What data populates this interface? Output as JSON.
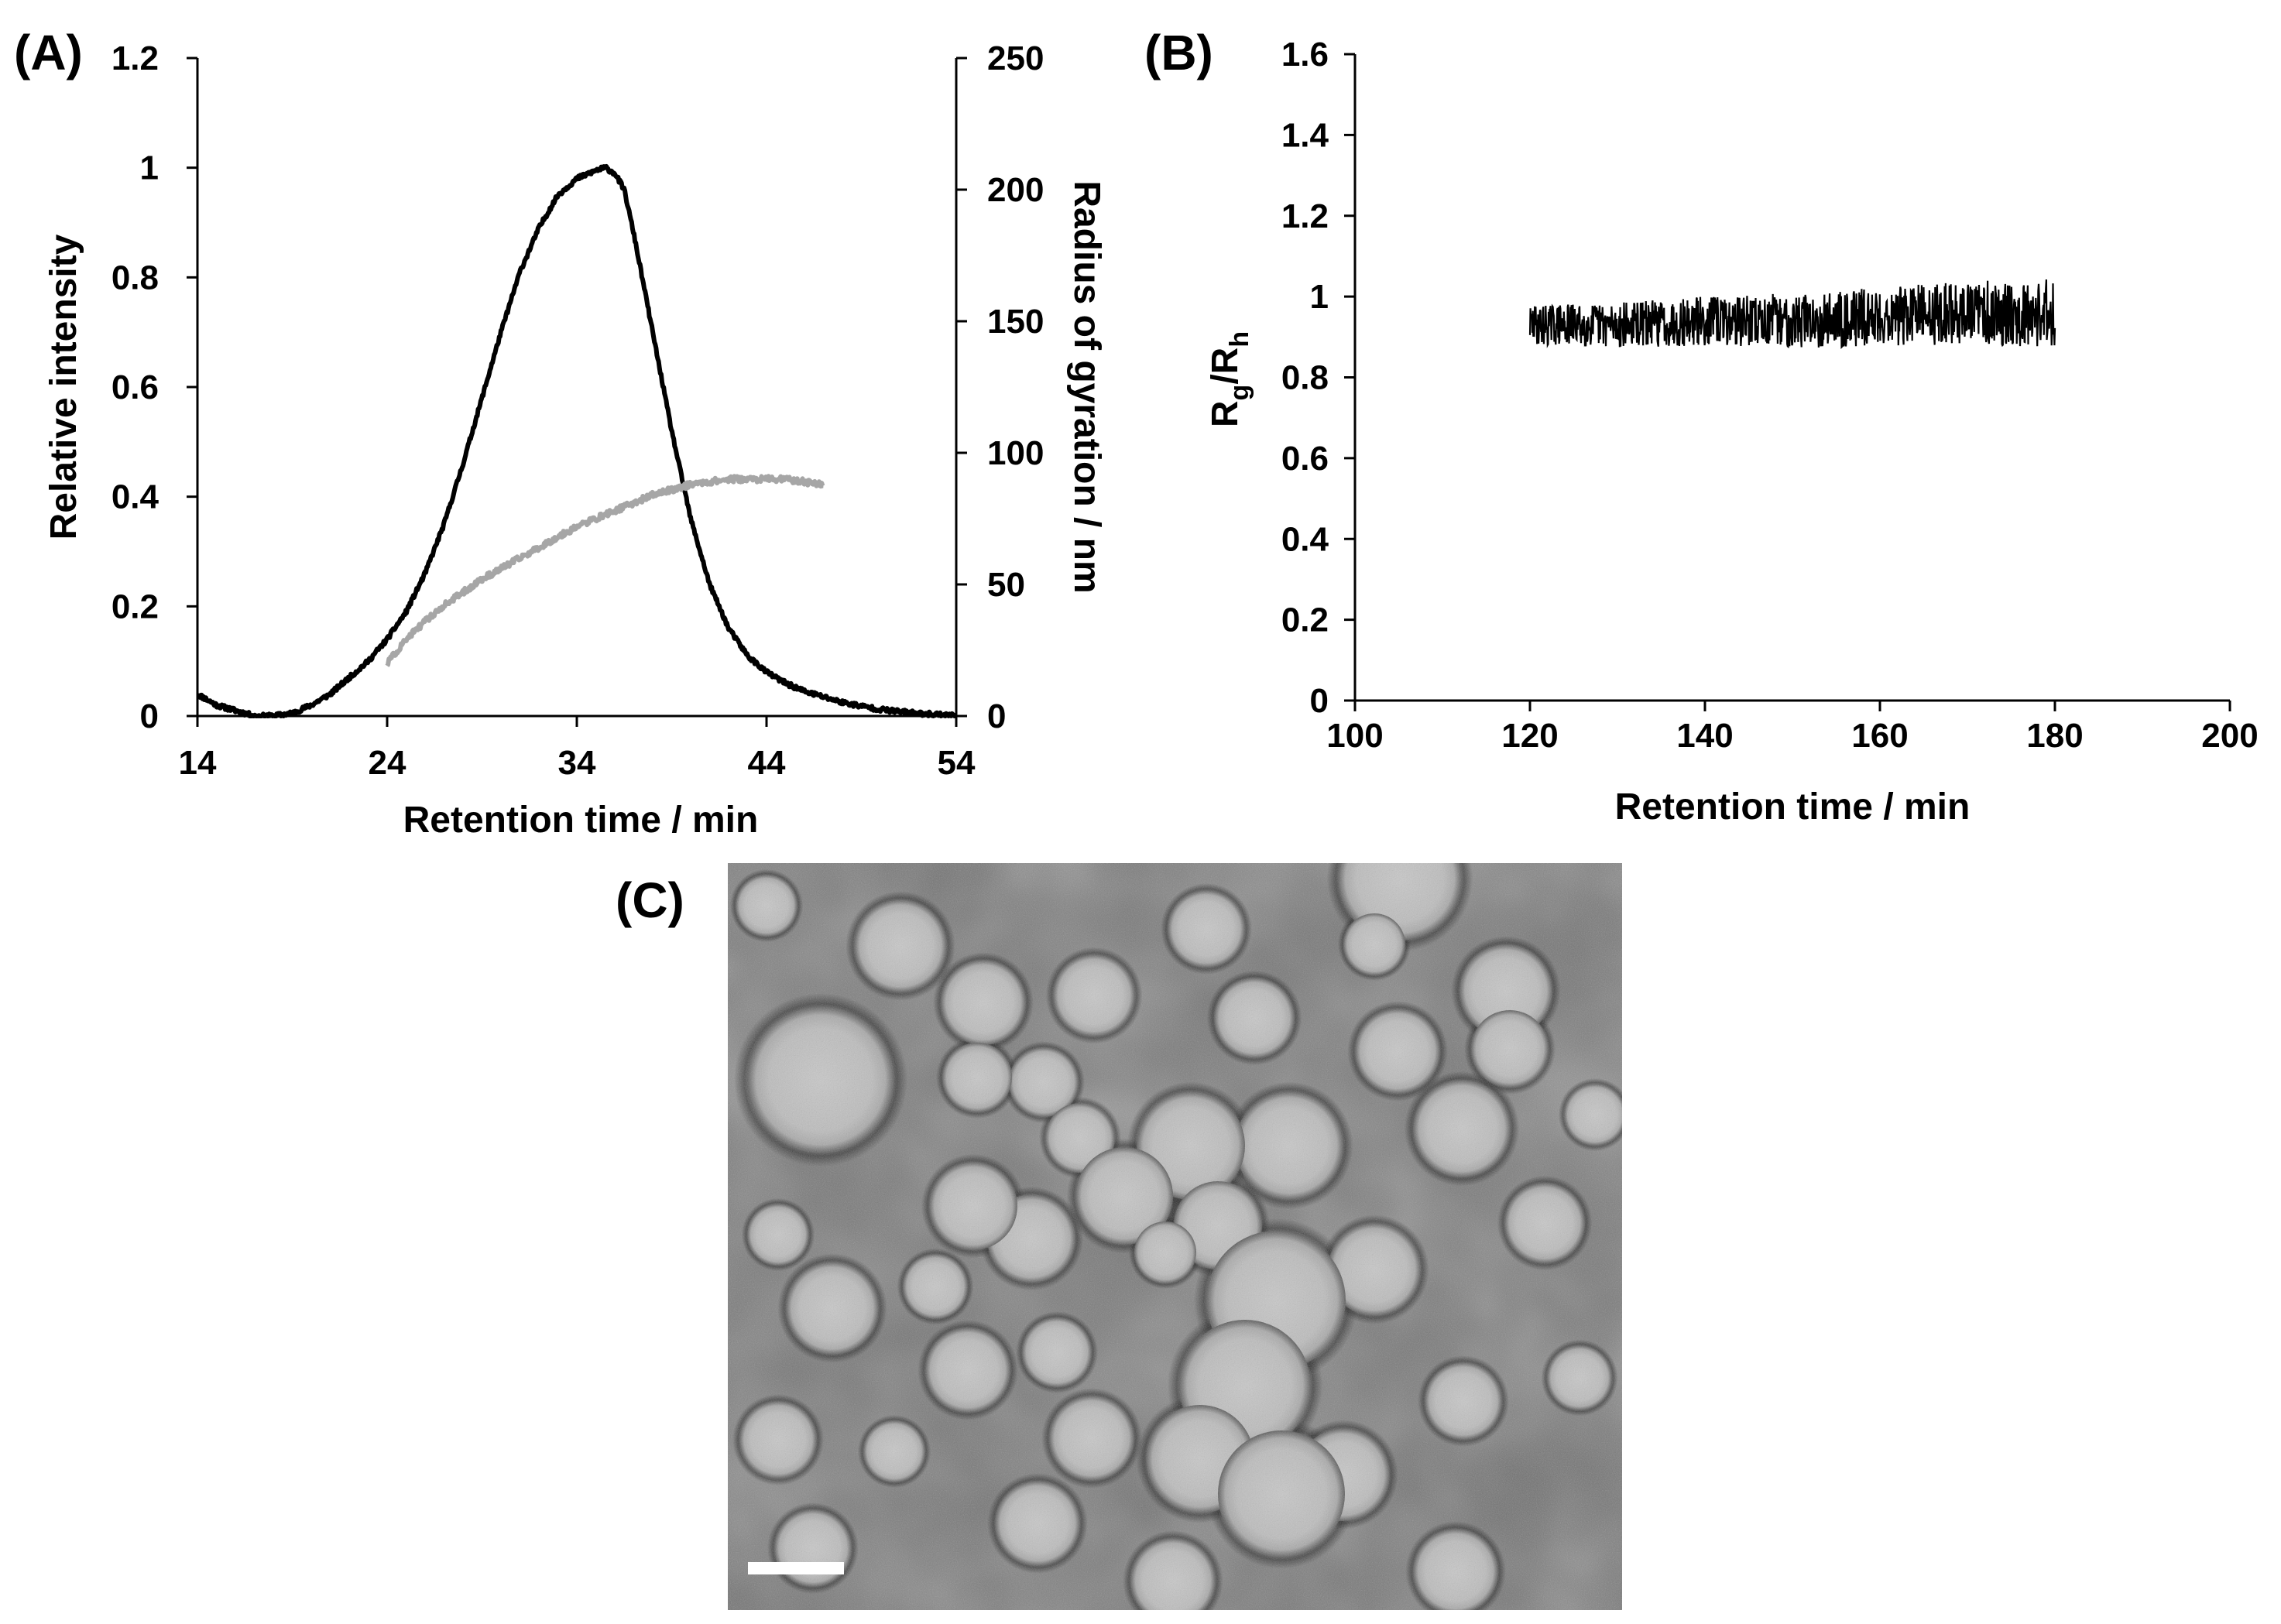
{
  "figure": {
    "panels": [
      {
        "id": "A",
        "label": "(A)"
      },
      {
        "id": "B",
        "label": "(B)"
      },
      {
        "id": "C",
        "label": "(C)"
      }
    ]
  },
  "chart_data": [
    {
      "panel": "A",
      "type": "line",
      "title": "",
      "xlabel": "Retention time / min",
      "ylabel": "Relative intensity",
      "y2label": "Radius of gyration / nm",
      "xlim": [
        14,
        54
      ],
      "ylim": [
        0,
        1.2
      ],
      "y2lim": [
        0,
        250
      ],
      "xticks": [
        14,
        24,
        34,
        44,
        54
      ],
      "yticks": [
        0,
        0.2,
        0.4,
        0.6,
        0.8,
        1.0,
        1.2
      ],
      "ytick_labels": [
        "0",
        "0.2",
        "0.4",
        "0.6",
        "0.8",
        "1",
        "1.2"
      ],
      "y2ticks": [
        0,
        50,
        100,
        150,
        200,
        250
      ],
      "grid": false,
      "series": [
        {
          "axis": "left",
          "color": "#000000",
          "x": [
            14,
            15,
            16,
            17,
            18,
            19,
            20,
            21,
            22,
            23,
            24,
            25,
            26,
            27,
            28,
            29,
            30,
            31,
            32,
            33,
            34,
            35,
            35.5,
            36,
            36.5,
            37,
            38,
            39,
            40,
            41,
            42,
            43,
            44,
            45,
            46,
            47,
            48,
            49,
            50,
            51,
            52,
            53,
            54
          ],
          "values": [
            0.04,
            0.02,
            0.01,
            0.0,
            0.0,
            0.005,
            0.02,
            0.04,
            0.07,
            0.1,
            0.14,
            0.19,
            0.26,
            0.35,
            0.46,
            0.58,
            0.7,
            0.81,
            0.89,
            0.95,
            0.98,
            0.995,
            1.0,
            0.99,
            0.96,
            0.88,
            0.7,
            0.52,
            0.36,
            0.24,
            0.16,
            0.11,
            0.08,
            0.06,
            0.045,
            0.035,
            0.025,
            0.018,
            0.012,
            0.008,
            0.005,
            0.003,
            0.001
          ]
        },
        {
          "axis": "right",
          "color": "#a6a6a6",
          "x": [
            24,
            25,
            26,
            27,
            28,
            29,
            30,
            31,
            32,
            33,
            34,
            35,
            36,
            37,
            38,
            39,
            40,
            41,
            42,
            43,
            44,
            45,
            46,
            47
          ],
          "values": [
            20,
            29,
            36,
            42,
            47,
            52,
            56,
            60,
            64,
            68,
            72,
            75,
            78,
            81,
            84,
            86,
            88,
            89,
            90,
            90,
            90,
            90,
            89,
            88
          ]
        }
      ]
    },
    {
      "panel": "B",
      "type": "line",
      "title": "",
      "xlabel": "Retention time / min",
      "ylabel_main": "R",
      "ylabel_sub1": "g",
      "ylabel_sep": "/R",
      "ylabel_sub2": "h",
      "xlim": [
        100,
        200
      ],
      "ylim": [
        0,
        1.6
      ],
      "xticks": [
        100,
        120,
        140,
        160,
        180,
        200
      ],
      "yticks": [
        0,
        0.2,
        0.4,
        0.6,
        0.8,
        1.0,
        1.2,
        1.4,
        1.6
      ],
      "ytick_labels": [
        "0",
        "0.2",
        "0.4",
        "0.6",
        "0.8",
        "1",
        "1.2",
        "1.4",
        "1.6"
      ],
      "grid": false,
      "series": [
        {
          "color": "#000000",
          "x": [
            120,
            130,
            140,
            150,
            160,
            170,
            180
          ],
          "values": [
            0.93,
            0.93,
            0.94,
            0.94,
            0.95,
            0.96,
            0.96
          ]
        }
      ]
    }
  ]
}
